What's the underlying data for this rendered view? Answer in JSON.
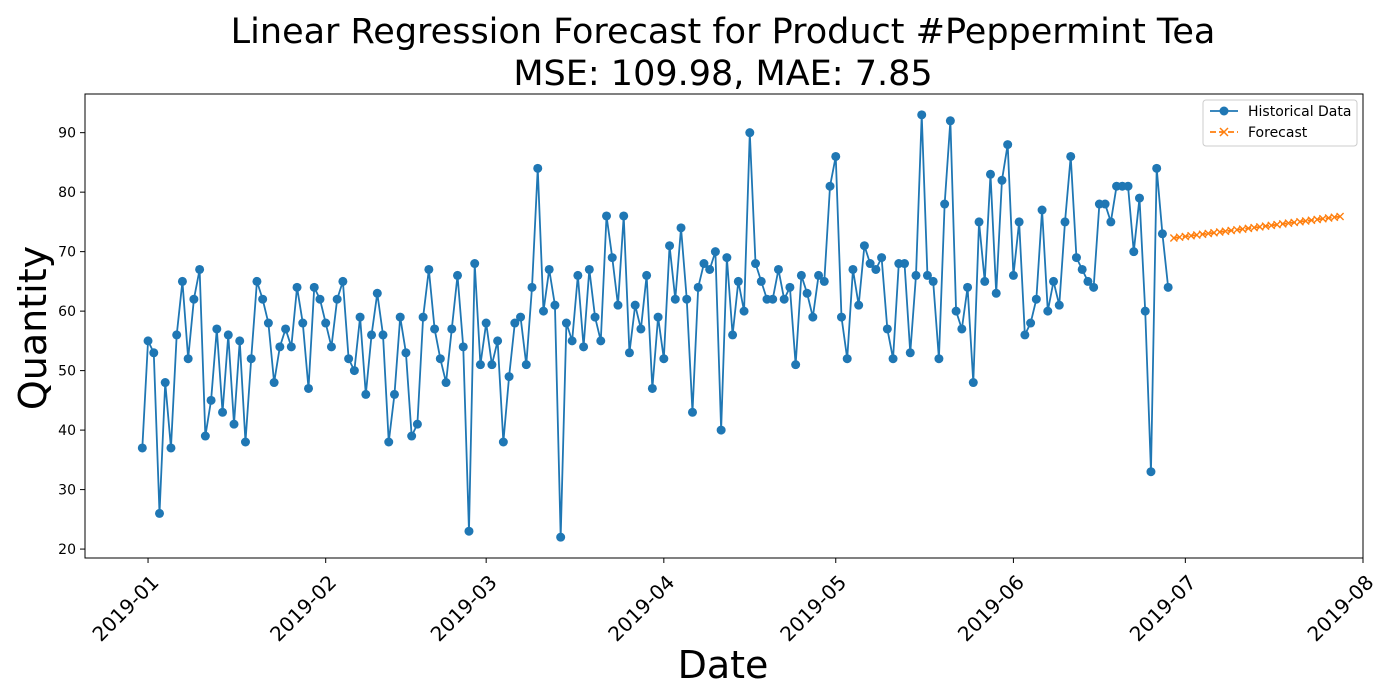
{
  "chart_data": {
    "type": "line",
    "title": "Linear Regression Forecast for Product #Peppermint Tea",
    "subtitle": "MSE: 109.98, MAE: 7.85",
    "xlabel": "Date",
    "ylabel": "Quantity",
    "xlim": [
      "2018-12-21",
      "2019-08-01"
    ],
    "ylim": [
      18.5,
      96.5
    ],
    "x_ticks": [
      "2019-01",
      "2019-02",
      "2019-03",
      "2019-04",
      "2019-05",
      "2019-06",
      "2019-07",
      "2019-08"
    ],
    "y_ticks": [
      20,
      30,
      40,
      50,
      60,
      70,
      80,
      90
    ],
    "grid": false,
    "legend_position": "top-right",
    "series": [
      {
        "name": "Historical Data",
        "color": "#1f77b4",
        "marker": "circle",
        "line_style": "solid",
        "start_date": "2018-12-31",
        "end_date": "2019-06-28",
        "values": [
          37,
          55,
          53,
          26,
          48,
          37,
          56,
          65,
          52,
          62,
          67,
          39,
          45,
          57,
          43,
          56,
          41,
          55,
          38,
          52,
          65,
          62,
          58,
          48,
          54,
          57,
          54,
          64,
          58,
          47,
          64,
          62,
          58,
          54,
          62,
          65,
          52,
          50,
          59,
          46,
          56,
          63,
          56,
          38,
          46,
          59,
          53,
          39,
          41,
          59,
          67,
          57,
          52,
          48,
          57,
          66,
          54,
          23,
          68,
          51,
          58,
          51,
          55,
          38,
          49,
          58,
          59,
          51,
          64,
          84,
          60,
          67,
          61,
          22,
          58,
          55,
          66,
          54,
          67,
          59,
          55,
          76,
          69,
          61,
          76,
          53,
          61,
          57,
          66,
          47,
          59,
          52,
          71,
          62,
          74,
          62,
          43,
          64,
          68,
          67,
          70,
          40,
          69,
          56,
          65,
          60,
          90,
          68,
          65,
          62,
          62,
          67,
          62,
          64,
          51,
          66,
          63,
          59,
          66,
          65,
          81,
          86,
          59,
          52,
          67,
          61,
          71,
          68,
          67,
          69,
          57,
          52,
          68,
          68,
          53,
          66,
          93,
          66,
          65,
          52,
          78,
          92,
          60,
          57,
          64,
          48,
          75,
          65,
          83,
          63,
          82,
          88,
          66,
          75,
          56,
          58,
          62,
          77,
          60,
          65,
          61,
          75,
          86,
          69,
          67,
          65,
          64,
          78,
          78,
          75,
          81,
          81,
          81,
          70,
          79,
          60,
          33,
          84,
          73,
          64
        ]
      },
      {
        "name": "Forecast",
        "color": "#ff7f0e",
        "marker": "x",
        "line_style": "dashed",
        "start_date": "2019-06-29",
        "end_date": "2019-07-28",
        "values": [
          72.3,
          72.43,
          72.55,
          72.68,
          72.8,
          72.92,
          73.05,
          73.17,
          73.3,
          73.42,
          73.55,
          73.67,
          73.79,
          73.92,
          74.04,
          74.17,
          74.29,
          74.41,
          74.54,
          74.66,
          74.79,
          74.91,
          75.03,
          75.16,
          75.28,
          75.41,
          75.53,
          75.65,
          75.78,
          75.9
        ]
      }
    ]
  }
}
